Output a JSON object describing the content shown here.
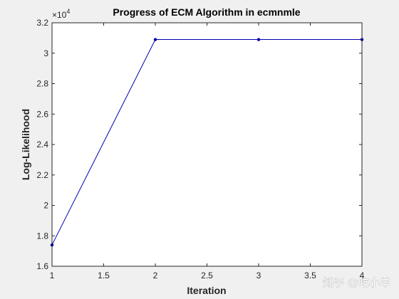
{
  "chart_data": {
    "type": "line",
    "title": "Progress of ECM Algorithm in ecmnmle",
    "xlabel": "Iteration",
    "ylabel": "Log-Likelihood",
    "xlim": [
      1,
      4
    ],
    "ylim": [
      1.6,
      3.2
    ],
    "y_multiplier_base": "×10",
    "y_multiplier_exponent": "4",
    "x_ticks": [
      1,
      1.5,
      2,
      2.5,
      3,
      3.5,
      4
    ],
    "x_tick_labels": [
      "1",
      "1.5",
      "2",
      "2.5",
      "3",
      "3.5",
      "4"
    ],
    "y_ticks": [
      1.6,
      1.8,
      2.0,
      2.2,
      2.4,
      2.6,
      2.8,
      3.0,
      3.2
    ],
    "y_tick_labels": [
      "1.6",
      "1.8",
      "2",
      "2.2",
      "2.4",
      "2.6",
      "2.8",
      "3",
      "3.2"
    ],
    "series": [
      {
        "x": [
          1,
          2,
          3,
          4
        ],
        "y": [
          1.74,
          3.09,
          3.09,
          3.09
        ],
        "color": "#0000b3",
        "marker": "dot"
      }
    ],
    "grid": false,
    "axes_color": "#262626",
    "plot_background": "#ffffff",
    "figure_background": "#f0f0f0"
  },
  "watermark": {
    "text": "知乎 @吃小羊"
  }
}
